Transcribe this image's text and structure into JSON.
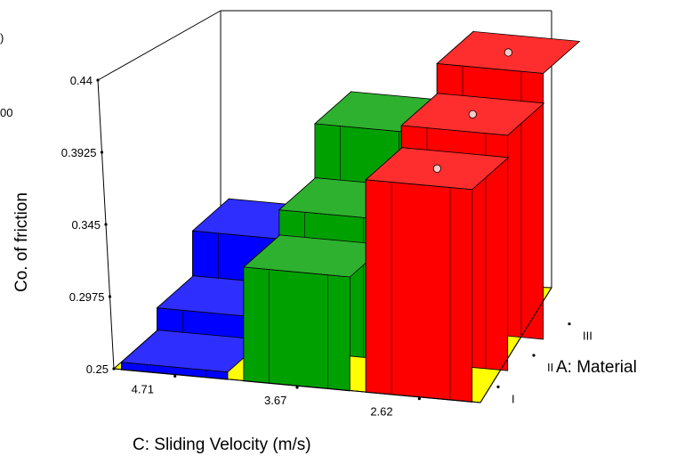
{
  "chart_data": {
    "type": "bar3d",
    "zlabel": "Co. of friction",
    "xlabel": "C: Sliding Velocity (m/s)",
    "ylabel": "A: Material",
    "x_categories": [
      "4.71",
      "3.67",
      "2.62"
    ],
    "y_categories": [
      "I",
      "II",
      "III"
    ],
    "z_ticks": [
      "0.25",
      "0.2975",
      "0.345",
      "0.3925",
      "0.44"
    ],
    "zlim": [
      0.25,
      0.44
    ],
    "floor_color": "#ffff00",
    "bars": [
      {
        "velocity": "4.71",
        "material": "I",
        "value": 0.255,
        "color": "#0000ff"
      },
      {
        "velocity": "4.71",
        "material": "II",
        "value": 0.27,
        "color": "#0000ff"
      },
      {
        "velocity": "4.71",
        "material": "III",
        "value": 0.3,
        "color": "#0000ff"
      },
      {
        "velocity": "3.67",
        "material": "I",
        "value": 0.325,
        "color": "#00a000"
      },
      {
        "velocity": "3.67",
        "material": "II",
        "value": 0.342,
        "color": "#00a000"
      },
      {
        "velocity": "3.67",
        "material": "III",
        "value": 0.378,
        "color": "#00a000"
      },
      {
        "velocity": "2.62",
        "material": "I",
        "value": 0.39,
        "color": "#ff0000",
        "marker": true
      },
      {
        "velocity": "2.62",
        "material": "II",
        "value": 0.405,
        "color": "#ff0000",
        "marker": true
      },
      {
        "velocity": "2.62",
        "material": "III",
        "value": 0.425,
        "color": "#ff0000",
        "marker": true
      }
    ],
    "cutoff_text": [
      ")",
      "00"
    ]
  }
}
